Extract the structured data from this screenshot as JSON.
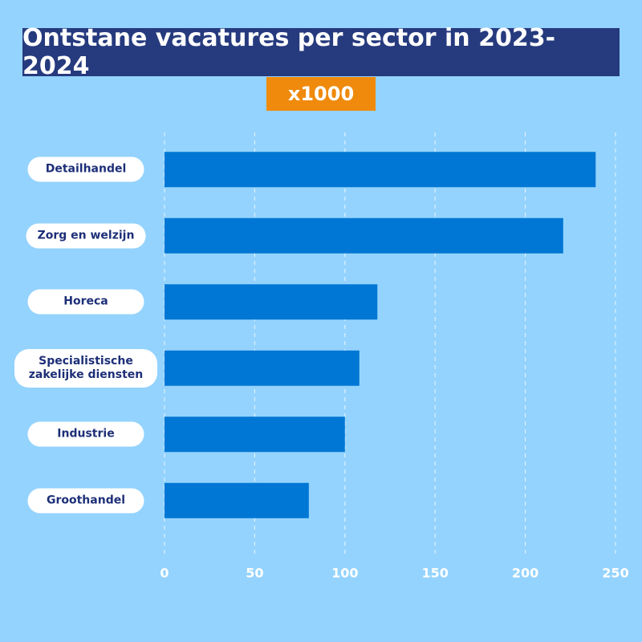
{
  "chart_data": {
    "type": "barh",
    "title": "Ontstane vacatures per sector in 2023-2024",
    "subtitle": "x1000",
    "categories": [
      "Detailhandel",
      "Zorg en welzijn",
      "Horeca",
      "Specialistische zakelijke diensten",
      "Industrie",
      "Groothandel"
    ],
    "values": [
      239,
      221,
      118,
      108,
      100,
      80
    ],
    "color": "#0077d4",
    "xlim": [
      0,
      250
    ],
    "xticks": [
      0,
      50,
      100,
      150,
      200,
      250
    ],
    "grid": true
  }
}
